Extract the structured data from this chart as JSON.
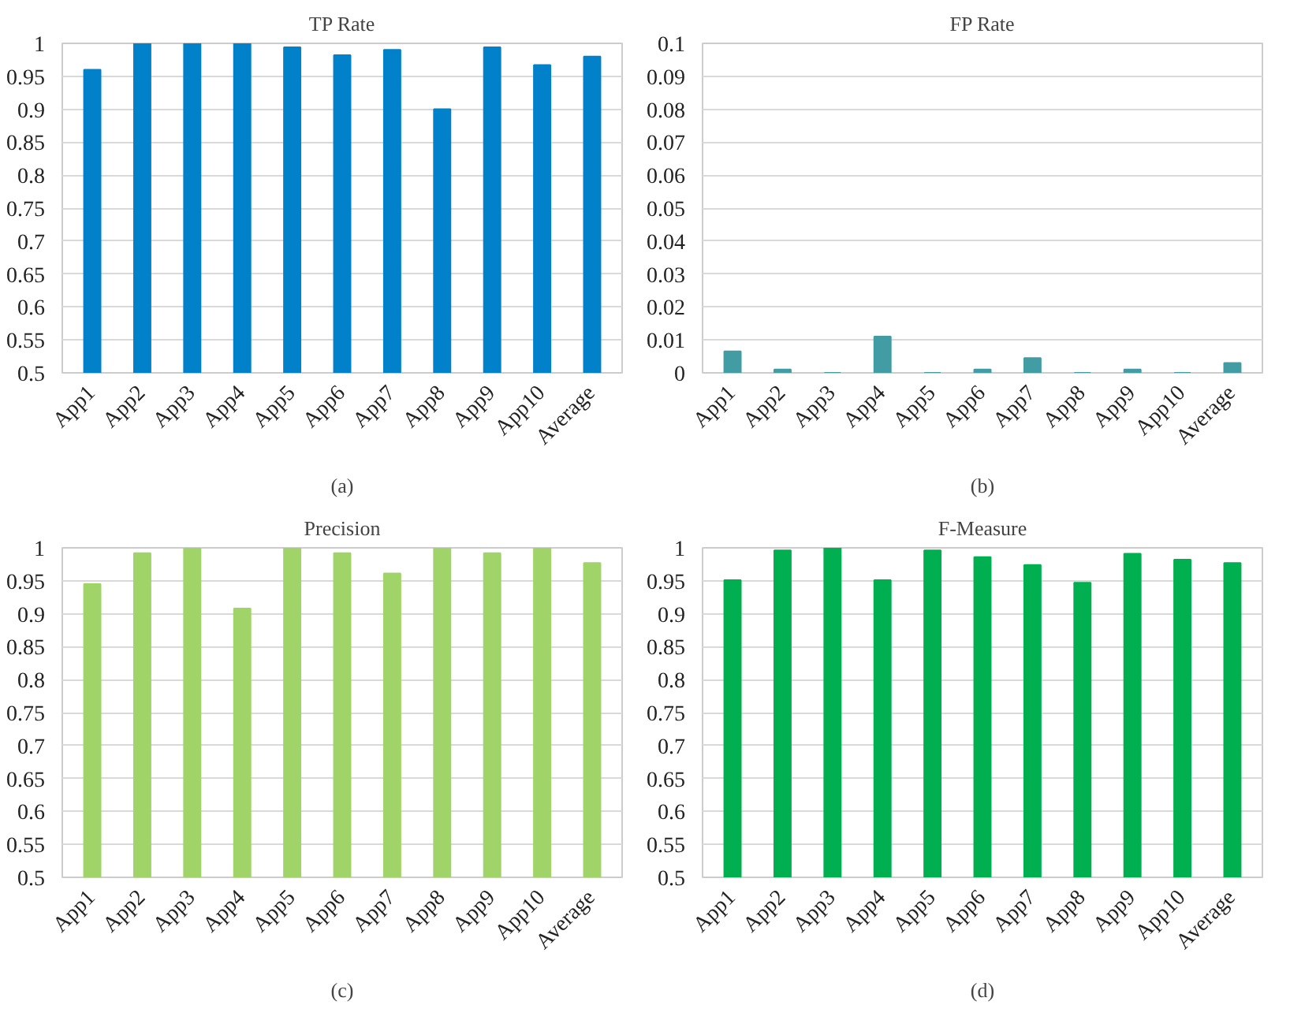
{
  "chart_data": [
    {
      "type": "bar",
      "title": "TP Rate",
      "categories": [
        "App1",
        "App2",
        "App3",
        "App4",
        "App5",
        "App6",
        "App7",
        "App8",
        "App9",
        "App10",
        "Average"
      ],
      "values": [
        0.96,
        1.0,
        1.0,
        1.0,
        0.994,
        0.982,
        0.99,
        0.9,
        0.994,
        0.967,
        0.98
      ],
      "color": "#0081c9",
      "ylim": [
        0.5,
        1
      ],
      "yticks": [
        0.5,
        0.55,
        0.6,
        0.65,
        0.7,
        0.75,
        0.8,
        0.85,
        0.9,
        0.95,
        1
      ],
      "grid": "y",
      "annotations": [
        "(a)"
      ]
    },
    {
      "type": "bar",
      "title": "FP Rate",
      "categories": [
        "App1",
        "App2",
        "App3",
        "App4",
        "App5",
        "App6",
        "App7",
        "App8",
        "App9",
        "App10",
        "Average"
      ],
      "values": [
        0.0065,
        0.001,
        0,
        0.011,
        0,
        0.001,
        0.0045,
        0,
        0.001,
        0,
        0.003
      ],
      "color": "#429ca3",
      "ylim": [
        0,
        0.1
      ],
      "yticks": [
        0,
        0.01,
        0.02,
        0.03,
        0.04,
        0.05,
        0.06,
        0.07,
        0.08,
        0.09,
        0.1
      ],
      "grid": "y",
      "annotations": [
        "(b)"
      ]
    },
    {
      "type": "bar",
      "title": "Precision",
      "categories": [
        "App1",
        "App2",
        "App3",
        "App4",
        "App5",
        "App6",
        "App7",
        "App8",
        "App9",
        "App10",
        "Average"
      ],
      "values": [
        0.945,
        0.992,
        1.0,
        0.908,
        1.0,
        0.992,
        0.961,
        1.0,
        0.992,
        1.0,
        0.977
      ],
      "color": "#a0d468",
      "ylim": [
        0.5,
        1
      ],
      "yticks": [
        0.5,
        0.55,
        0.6,
        0.65,
        0.7,
        0.75,
        0.8,
        0.85,
        0.9,
        0.95,
        1
      ],
      "grid": "y",
      "annotations": [
        "(c)"
      ]
    },
    {
      "type": "bar",
      "title": "F-Measure",
      "categories": [
        "App1",
        "App2",
        "App3",
        "App4",
        "App5",
        "App6",
        "App7",
        "App8",
        "App9",
        "App10",
        "Average"
      ],
      "values": [
        0.951,
        0.996,
        1.0,
        0.951,
        0.996,
        0.986,
        0.974,
        0.947,
        0.991,
        0.982,
        0.977
      ],
      "color": "#00b050",
      "ylim": [
        0.5,
        1
      ],
      "yticks": [
        0.5,
        0.55,
        0.6,
        0.65,
        0.7,
        0.75,
        0.8,
        0.85,
        0.9,
        0.95,
        1
      ],
      "grid": "y",
      "annotations": [
        "(d)"
      ]
    }
  ]
}
